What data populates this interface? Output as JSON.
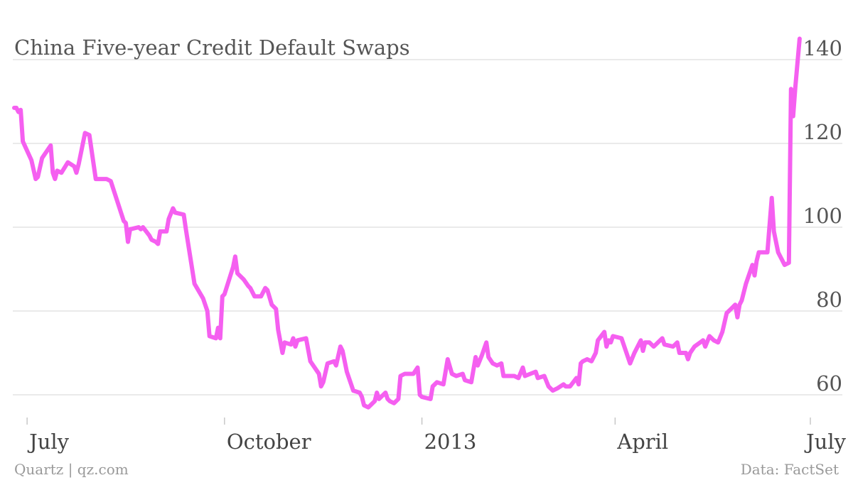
{
  "source_left": "Quartz | qz.com",
  "source_right": "Data: FactSet",
  "chart_data": {
    "type": "line",
    "title": "China Five-year Credit Default Swaps",
    "xlabel": "",
    "ylabel": "",
    "grid": "horizontal",
    "y_axis_side": "right",
    "ylim": [
      55,
      145
    ],
    "yticks": [
      60,
      80,
      100,
      120,
      140
    ],
    "xlim": [
      "2012-06-25",
      "2013-07-01"
    ],
    "xticks": [
      {
        "date": "2012-07-01",
        "label": "July"
      },
      {
        "date": "2012-10-01",
        "label": "October"
      },
      {
        "date": "2013-01-01",
        "label": "2013"
      },
      {
        "date": "2013-04-01",
        "label": "April"
      },
      {
        "date": "2013-07-01",
        "label": "July"
      }
    ],
    "series": [
      {
        "color": "#f55ff0",
        "points": [
          [
            "2012-06-25",
            128.5
          ],
          [
            "2012-06-26",
            128.5
          ],
          [
            "2012-06-27",
            127.5
          ],
          [
            "2012-06-28",
            128
          ],
          [
            "2012-06-29",
            120.5
          ],
          [
            "2012-07-03",
            116
          ],
          [
            "2012-07-05",
            111.5
          ],
          [
            "2012-07-06",
            112
          ],
          [
            "2012-07-08",
            116.5
          ],
          [
            "2012-07-12",
            119.5
          ],
          [
            "2012-07-13",
            113
          ],
          [
            "2012-07-14",
            111.5
          ],
          [
            "2012-07-15",
            113.5
          ],
          [
            "2012-07-17",
            113
          ],
          [
            "2012-07-20",
            115.5
          ],
          [
            "2012-07-23",
            114.5
          ],
          [
            "2012-07-24",
            113
          ],
          [
            "2012-07-25",
            115
          ],
          [
            "2012-07-28",
            122.5
          ],
          [
            "2012-07-30",
            122
          ],
          [
            "2012-08-02",
            111.5
          ],
          [
            "2012-08-07",
            111.5
          ],
          [
            "2012-08-09",
            111
          ],
          [
            "2012-08-15",
            101.5
          ],
          [
            "2012-08-16",
            101
          ],
          [
            "2012-08-17",
            96.5
          ],
          [
            "2012-08-18",
            99.5
          ],
          [
            "2012-08-22",
            100
          ],
          [
            "2012-08-23",
            99.5
          ],
          [
            "2012-08-24",
            100
          ],
          [
            "2012-08-27",
            98
          ],
          [
            "2012-08-28",
            97
          ],
          [
            "2012-08-30",
            96.5
          ],
          [
            "2012-08-31",
            96
          ],
          [
            "2012-09-01",
            99
          ],
          [
            "2012-09-04",
            99
          ],
          [
            "2012-09-05",
            102
          ],
          [
            "2012-09-07",
            104.5
          ],
          [
            "2012-09-08",
            103.5
          ],
          [
            "2012-09-12",
            103
          ],
          [
            "2012-09-13",
            99.5
          ],
          [
            "2012-09-17",
            86.5
          ],
          [
            "2012-09-21",
            83
          ],
          [
            "2012-09-23",
            80
          ],
          [
            "2012-09-24",
            74
          ],
          [
            "2012-09-27",
            73.5
          ],
          [
            "2012-09-28",
            76
          ],
          [
            "2012-09-29",
            73.5
          ],
          [
            "2012-09-30",
            83.5
          ],
          [
            "2012-10-01",
            84
          ],
          [
            "2012-10-05",
            90.5
          ],
          [
            "2012-10-06",
            93
          ],
          [
            "2012-10-07",
            89
          ],
          [
            "2012-10-10",
            87.5
          ],
          [
            "2012-10-12",
            86
          ],
          [
            "2012-10-13",
            85.5
          ],
          [
            "2012-10-15",
            83.5
          ],
          [
            "2012-10-18",
            83.5
          ],
          [
            "2012-10-20",
            85.5
          ],
          [
            "2012-10-21",
            85
          ],
          [
            "2012-10-23",
            81.5
          ],
          [
            "2012-10-25",
            80.5
          ],
          [
            "2012-10-26",
            75.5
          ],
          [
            "2012-10-28",
            70
          ],
          [
            "2012-10-29",
            72.5
          ],
          [
            "2012-11-01",
            72
          ],
          [
            "2012-11-02",
            73.5
          ],
          [
            "2012-11-03",
            71.5
          ],
          [
            "2012-11-04",
            73
          ],
          [
            "2012-11-08",
            73.5
          ],
          [
            "2012-11-10",
            68
          ],
          [
            "2012-11-12",
            66.5
          ],
          [
            "2012-11-14",
            65
          ],
          [
            "2012-11-15",
            62
          ],
          [
            "2012-11-16",
            63
          ],
          [
            "2012-11-18",
            67.5
          ],
          [
            "2012-11-21",
            68
          ],
          [
            "2012-11-22",
            67
          ],
          [
            "2012-11-24",
            71.5
          ],
          [
            "2012-11-25",
            70.5
          ],
          [
            "2012-11-27",
            65.5
          ],
          [
            "2012-11-30",
            61
          ],
          [
            "2012-12-03",
            60.5
          ],
          [
            "2012-12-04",
            59.5
          ],
          [
            "2012-12-05",
            57.5
          ],
          [
            "2012-12-07",
            57
          ],
          [
            "2012-12-08",
            57.5
          ],
          [
            "2012-12-10",
            58.5
          ],
          [
            "2012-12-11",
            60.5
          ],
          [
            "2012-12-12",
            59
          ],
          [
            "2012-12-15",
            60.5
          ],
          [
            "2012-12-16",
            59
          ],
          [
            "2012-12-17",
            58.5
          ],
          [
            "2012-12-19",
            58
          ],
          [
            "2012-12-21",
            59
          ],
          [
            "2012-12-22",
            64.5
          ],
          [
            "2012-12-24",
            65
          ],
          [
            "2012-12-28",
            65
          ],
          [
            "2012-12-30",
            66.5
          ],
          [
            "2012-12-31",
            60
          ],
          [
            "2013-01-01",
            59.5
          ],
          [
            "2013-01-05",
            59
          ],
          [
            "2013-01-06",
            62
          ],
          [
            "2013-01-08",
            63
          ],
          [
            "2013-01-11",
            62.5
          ],
          [
            "2013-01-13",
            68.5
          ],
          [
            "2013-01-15",
            65
          ],
          [
            "2013-01-17",
            64.5
          ],
          [
            "2013-01-20",
            65
          ],
          [
            "2013-01-21",
            63.5
          ],
          [
            "2013-01-24",
            63
          ],
          [
            "2013-01-26",
            69
          ],
          [
            "2013-01-27",
            67
          ],
          [
            "2013-01-29",
            69.5
          ],
          [
            "2013-01-31",
            72.5
          ],
          [
            "2013-02-01",
            69
          ],
          [
            "2013-02-03",
            67.5
          ],
          [
            "2013-02-05",
            67
          ],
          [
            "2013-02-07",
            67.5
          ],
          [
            "2013-02-08",
            64.5
          ],
          [
            "2013-02-13",
            64.5
          ],
          [
            "2013-02-15",
            64
          ],
          [
            "2013-02-17",
            66.5
          ],
          [
            "2013-02-18",
            64.5
          ],
          [
            "2013-02-23",
            65.5
          ],
          [
            "2013-02-24",
            64
          ],
          [
            "2013-02-27",
            64.5
          ],
          [
            "2013-03-01",
            62
          ],
          [
            "2013-03-03",
            61
          ],
          [
            "2013-03-05",
            61.5
          ],
          [
            "2013-03-08",
            62.5
          ],
          [
            "2013-03-09",
            62
          ],
          [
            "2013-03-11",
            62
          ],
          [
            "2013-03-14",
            64
          ],
          [
            "2013-03-15",
            62.5
          ],
          [
            "2013-03-16",
            67.5
          ],
          [
            "2013-03-17",
            68
          ],
          [
            "2013-03-19",
            68.5
          ],
          [
            "2013-03-21",
            68
          ],
          [
            "2013-03-23",
            70
          ],
          [
            "2013-03-24",
            73
          ],
          [
            "2013-03-27",
            75
          ],
          [
            "2013-03-28",
            71.5
          ],
          [
            "2013-03-29",
            73
          ],
          [
            "2013-03-30",
            72.5
          ],
          [
            "2013-03-31",
            74
          ],
          [
            "2013-04-04",
            73.5
          ],
          [
            "2013-04-08",
            67.5
          ],
          [
            "2013-04-10",
            70
          ],
          [
            "2013-04-13",
            73
          ],
          [
            "2013-04-14",
            70.5
          ],
          [
            "2013-04-15",
            72.5
          ],
          [
            "2013-04-17",
            72.5
          ],
          [
            "2013-04-19",
            71.5
          ],
          [
            "2013-04-23",
            73.5
          ],
          [
            "2013-04-24",
            72
          ],
          [
            "2013-04-28",
            71.5
          ],
          [
            "2013-04-30",
            72.5
          ],
          [
            "2013-05-01",
            70
          ],
          [
            "2013-05-04",
            70
          ],
          [
            "2013-05-05",
            68.5
          ],
          [
            "2013-05-06",
            70
          ],
          [
            "2013-05-08",
            71.5
          ],
          [
            "2013-05-12",
            73
          ],
          [
            "2013-05-13",
            71.5
          ],
          [
            "2013-05-15",
            74
          ],
          [
            "2013-05-17",
            73
          ],
          [
            "2013-05-19",
            72.5
          ],
          [
            "2013-05-21",
            75
          ],
          [
            "2013-05-23",
            79.5
          ],
          [
            "2013-05-25",
            80.5
          ],
          [
            "2013-05-27",
            81.5
          ],
          [
            "2013-05-28",
            78.5
          ],
          [
            "2013-05-29",
            81.5
          ],
          [
            "2013-05-30",
            82.5
          ],
          [
            "2013-06-01",
            86.5
          ],
          [
            "2013-06-04",
            91
          ],
          [
            "2013-06-05",
            88.5
          ],
          [
            "2013-06-06",
            92
          ],
          [
            "2013-06-07",
            94
          ],
          [
            "2013-06-11",
            94
          ],
          [
            "2013-06-13",
            107
          ],
          [
            "2013-06-14",
            99
          ],
          [
            "2013-06-16",
            94
          ],
          [
            "2013-06-18",
            92
          ],
          [
            "2013-06-19",
            91
          ],
          [
            "2013-06-21",
            91.5
          ],
          [
            "2013-06-22",
            133
          ],
          [
            "2013-06-23",
            126.5
          ],
          [
            "2013-06-24",
            133.5
          ],
          [
            "2013-06-26",
            145
          ]
        ]
      }
    ]
  }
}
